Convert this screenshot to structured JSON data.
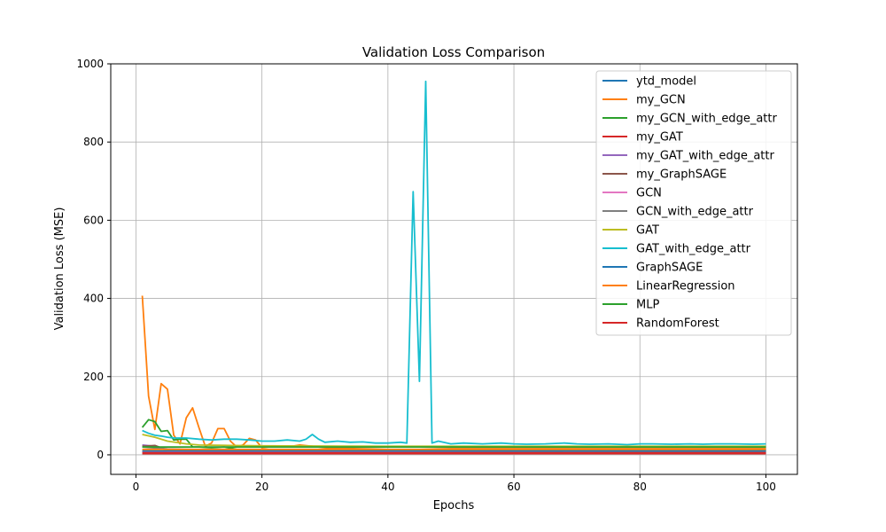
{
  "chart_data": {
    "type": "line",
    "title": "Validation Loss Comparison",
    "xlabel": "Epochs",
    "ylabel": "Validation Loss (MSE)",
    "xlim": [
      -4,
      105
    ],
    "ylim": [
      -50,
      1000
    ],
    "xticks": [
      0,
      20,
      40,
      60,
      80,
      100
    ],
    "yticks": [
      0,
      200,
      400,
      600,
      800,
      1000
    ],
    "grid": true,
    "legend_position": "top-right",
    "series": [
      {
        "name": "ytd_model",
        "color": "#1f77b4",
        "x": [
          1,
          100
        ],
        "y": [
          8,
          8
        ]
      },
      {
        "name": "my_GCN",
        "color": "#ff7f0e",
        "x": [
          1,
          2,
          3,
          4,
          5,
          6,
          7,
          8,
          9,
          10,
          11,
          12,
          13,
          14,
          15,
          16,
          17,
          18,
          19,
          20,
          22,
          24,
          26,
          28,
          30,
          32,
          35,
          40,
          45,
          50,
          60,
          70,
          80,
          90,
          100
        ],
        "y": [
          407,
          150,
          65,
          182,
          168,
          50,
          28,
          95,
          120,
          70,
          22,
          30,
          67,
          67,
          35,
          20,
          25,
          42,
          38,
          18,
          22,
          20,
          25,
          22,
          18,
          16,
          18,
          20,
          20,
          18,
          18,
          18,
          18,
          18,
          18
        ]
      },
      {
        "name": "my_GCN_with_edge_attr",
        "color": "#2ca02c",
        "x": [
          1,
          2,
          3,
          4,
          5,
          6,
          7,
          8,
          9,
          10,
          12,
          14,
          16,
          20,
          30,
          40,
          60,
          80,
          100
        ],
        "y": [
          70,
          90,
          85,
          60,
          62,
          38,
          40,
          40,
          20,
          20,
          18,
          20,
          14,
          12,
          12,
          12,
          12,
          12,
          12
        ]
      },
      {
        "name": "my_GAT",
        "color": "#d62728",
        "x": [
          1,
          100
        ],
        "y": [
          3,
          3
        ]
      },
      {
        "name": "my_GAT_with_edge_attr",
        "color": "#9467bd",
        "x": [
          1,
          3,
          5,
          10,
          20,
          100
        ],
        "y": [
          25,
          22,
          10,
          8,
          6,
          6
        ]
      },
      {
        "name": "my_GraphSAGE",
        "color": "#8c564b",
        "x": [
          1,
          3,
          5,
          10,
          20,
          100
        ],
        "y": [
          22,
          24,
          12,
          10,
          8,
          8
        ]
      },
      {
        "name": "GCN",
        "color": "#e377c2",
        "x": [
          1,
          100
        ],
        "y": [
          6,
          6
        ]
      },
      {
        "name": "GCN_with_edge_attr",
        "color": "#7f7f7f",
        "x": [
          1,
          5,
          20,
          100
        ],
        "y": [
          20,
          15,
          10,
          8
        ]
      },
      {
        "name": "GAT",
        "color": "#bcbd22",
        "x": [
          1,
          3,
          5,
          8,
          10,
          15,
          20,
          40,
          60,
          80,
          100
        ],
        "y": [
          52,
          45,
          35,
          28,
          25,
          24,
          23,
          22,
          22,
          22,
          22
        ]
      },
      {
        "name": "GAT_with_edge_attr",
        "color": "#17becf",
        "x": [
          1,
          2,
          3,
          4,
          5,
          6,
          8,
          10,
          12,
          14,
          16,
          18,
          20,
          22,
          24,
          26,
          27,
          28,
          29,
          30,
          32,
          34,
          36,
          38,
          40,
          42,
          43,
          44,
          45,
          46,
          47,
          48,
          50,
          52,
          55,
          58,
          60,
          62,
          65,
          68,
          70,
          72,
          75,
          78,
          80,
          82,
          85,
          88,
          90,
          92,
          95,
          98,
          100
        ],
        "y": [
          62,
          55,
          50,
          48,
          45,
          43,
          43,
          40,
          38,
          40,
          40,
          38,
          35,
          35,
          38,
          35,
          40,
          52,
          40,
          32,
          35,
          32,
          33,
          30,
          30,
          32,
          30,
          673,
          188,
          955,
          30,
          35,
          28,
          30,
          28,
          30,
          28,
          27,
          28,
          30,
          28,
          27,
          28,
          26,
          28,
          28,
          27,
          28,
          27,
          28,
          28,
          27,
          28
        ]
      },
      {
        "name": "GraphSAGE",
        "color": "#1f77b4",
        "x": [
          1,
          100
        ],
        "y": [
          10,
          10
        ]
      },
      {
        "name": "LinearRegression",
        "color": "#ff7f0e",
        "x": [
          1,
          100
        ],
        "y": [
          14,
          14
        ]
      },
      {
        "name": "MLP",
        "color": "#2ca02c",
        "x": [
          1,
          100
        ],
        "y": [
          20,
          20
        ]
      },
      {
        "name": "RandomForest",
        "color": "#d62728",
        "x": [
          1,
          100
        ],
        "y": [
          5,
          5
        ]
      }
    ]
  }
}
